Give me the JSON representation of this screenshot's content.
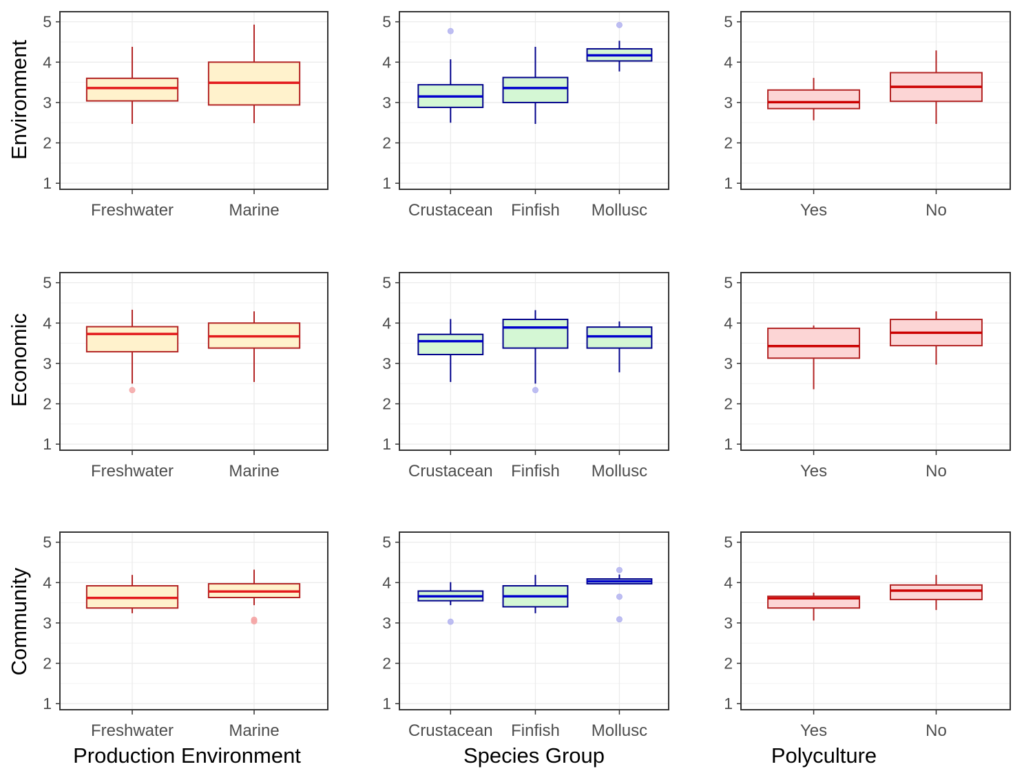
{
  "chart_data": {
    "type": "boxplot",
    "layout": "3x3 grid of box plots",
    "rows": [
      "Environment",
      "Economic",
      "Community"
    ],
    "columns": [
      {
        "title": "Production Environment",
        "categories": [
          "Freshwater",
          "Marine"
        ],
        "style": "pe"
      },
      {
        "title": "Species Group",
        "categories": [
          "Crustacean",
          "Finfish",
          "Mollusc"
        ],
        "style": "sg"
      },
      {
        "title": "Polyculture",
        "categories": [
          "Yes",
          "No"
        ],
        "style": "pc"
      }
    ],
    "ylim": [
      0.85,
      5.25
    ],
    "yticks": [
      1,
      2,
      3,
      4,
      5
    ],
    "grid": true,
    "styles": {
      "pe": {
        "stroke": "#b22222",
        "median": "#e31a1c",
        "fill": "#fff2cc",
        "outlier": "#f4a6a6"
      },
      "sg": {
        "stroke": "#00008b",
        "median": "#0000cd",
        "fill": "#d4f7d4",
        "outlier": "#b3b3f0"
      },
      "pc": {
        "stroke": "#b22222",
        "median": "#cc0000",
        "fill": "#fcd5d5",
        "outlier": "#f4a6a6"
      }
    },
    "panels": [
      [
        [
          {
            "category": "Freshwater",
            "whisker_low": 2.47,
            "q1": 3.04,
            "median": 3.36,
            "q3": 3.6,
            "whisker_high": 4.38,
            "outliers": []
          },
          {
            "category": "Marine",
            "whisker_low": 2.49,
            "q1": 2.94,
            "median": 3.49,
            "q3": 4.0,
            "whisker_high": 4.93,
            "outliers": []
          }
        ],
        [
          {
            "category": "Crustacean",
            "whisker_low": 2.5,
            "q1": 2.88,
            "median": 3.15,
            "q3": 3.44,
            "whisker_high": 4.07,
            "outliers": [
              4.77
            ]
          },
          {
            "category": "Finfish",
            "whisker_low": 2.47,
            "q1": 3.0,
            "median": 3.36,
            "q3": 3.62,
            "whisker_high": 4.38,
            "outliers": []
          },
          {
            "category": "Mollusc",
            "whisker_low": 3.77,
            "q1": 4.03,
            "median": 4.17,
            "q3": 4.33,
            "whisker_high": 4.53,
            "outliers": [
              4.92
            ]
          }
        ],
        [
          {
            "category": "Yes",
            "whisker_low": 2.56,
            "q1": 2.85,
            "median": 3.01,
            "q3": 3.31,
            "whisker_high": 3.61,
            "outliers": []
          },
          {
            "category": "No",
            "whisker_low": 2.47,
            "q1": 3.03,
            "median": 3.39,
            "q3": 3.74,
            "whisker_high": 4.29,
            "outliers": []
          }
        ]
      ],
      [
        [
          {
            "category": "Freshwater",
            "whisker_low": 2.5,
            "q1": 3.29,
            "median": 3.73,
            "q3": 3.91,
            "whisker_high": 4.33,
            "outliers": [
              2.34
            ]
          },
          {
            "category": "Marine",
            "whisker_low": 2.54,
            "q1": 3.38,
            "median": 3.67,
            "q3": 4.0,
            "whisker_high": 4.29,
            "outliers": []
          }
        ],
        [
          {
            "category": "Crustacean",
            "whisker_low": 2.54,
            "q1": 3.22,
            "median": 3.55,
            "q3": 3.72,
            "whisker_high": 4.1,
            "outliers": []
          },
          {
            "category": "Finfish",
            "whisker_low": 2.5,
            "q1": 3.38,
            "median": 3.89,
            "q3": 4.09,
            "whisker_high": 4.32,
            "outliers": [
              2.34
            ]
          },
          {
            "category": "Mollusc",
            "whisker_low": 2.78,
            "q1": 3.38,
            "median": 3.67,
            "q3": 3.9,
            "whisker_high": 4.04,
            "outliers": []
          }
        ],
        [
          {
            "category": "Yes",
            "whisker_low": 2.36,
            "q1": 3.13,
            "median": 3.43,
            "q3": 3.87,
            "whisker_high": 3.94,
            "outliers": []
          },
          {
            "category": "No",
            "whisker_low": 2.97,
            "q1": 3.44,
            "median": 3.76,
            "q3": 4.09,
            "whisker_high": 4.29,
            "outliers": []
          }
        ]
      ],
      [
        [
          {
            "category": "Freshwater",
            "whisker_low": 3.24,
            "q1": 3.37,
            "median": 3.62,
            "q3": 3.92,
            "whisker_high": 4.19,
            "outliers": []
          },
          {
            "category": "Marine",
            "whisker_low": 3.44,
            "q1": 3.63,
            "median": 3.78,
            "q3": 3.97,
            "whisker_high": 4.32,
            "outliers": [
              3.04,
              3.08
            ]
          }
        ],
        [
          {
            "category": "Crustacean",
            "whisker_low": 3.44,
            "q1": 3.55,
            "median": 3.66,
            "q3": 3.79,
            "whisker_high": 4.01,
            "outliers": [
              3.03
            ]
          },
          {
            "category": "Finfish",
            "whisker_low": 3.24,
            "q1": 3.4,
            "median": 3.66,
            "q3": 3.92,
            "whisker_high": 4.19,
            "outliers": []
          },
          {
            "category": "Mollusc",
            "whisker_low": 3.97,
            "q1": 3.97,
            "median": 4.03,
            "q3": 4.09,
            "whisker_high": 4.2,
            "outliers": [
              4.31,
              3.65,
              3.09
            ]
          }
        ],
        [
          {
            "category": "Yes",
            "whisker_low": 3.06,
            "q1": 3.37,
            "median": 3.61,
            "q3": 3.66,
            "whisker_high": 3.75,
            "outliers": []
          },
          {
            "category": "No",
            "whisker_low": 3.32,
            "q1": 3.58,
            "median": 3.8,
            "q3": 3.94,
            "whisker_high": 4.19,
            "outliers": []
          }
        ]
      ]
    ]
  }
}
